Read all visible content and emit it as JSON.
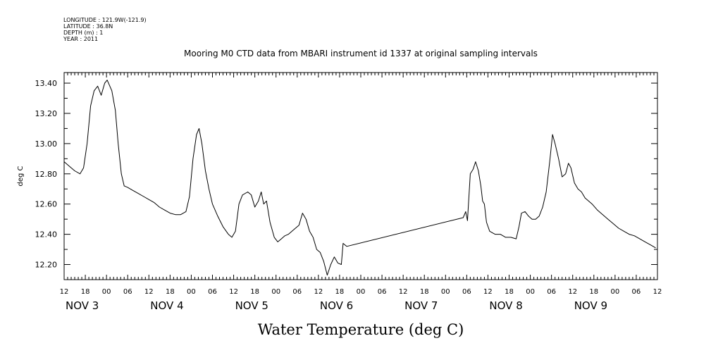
{
  "header": {
    "longitude": "LONGITUDE : 121.9W(-121.9)",
    "latitude": "LATITUDE : 36.8N",
    "depth": "DEPTH (m) : 1",
    "year": "YEAR : 2011"
  },
  "chart_data": {
    "type": "line",
    "title": "Mooring M0 CTD data from MBARI instrument id 1337 at original sampling intervals",
    "xlabel": "Water Temperature (deg C)",
    "ylabel": "deg C",
    "x_units": "hours since Nov 3 12:00 (2011)",
    "xlim": [
      0,
      168
    ],
    "ylim": [
      12.1,
      13.47
    ],
    "yticks": [
      12.2,
      12.4,
      12.6,
      12.8,
      13.0,
      13.2,
      13.4
    ],
    "ytick_labels": [
      "12.20",
      "12.40",
      "12.60",
      "12.80",
      "13.00",
      "13.20",
      "13.40"
    ],
    "xtick_hours": [
      "12",
      "18",
      "00",
      "06",
      "12",
      "18",
      "00",
      "06",
      "12",
      "18",
      "00",
      "06",
      "12",
      "18",
      "00",
      "06",
      "12",
      "18",
      "00",
      "06",
      "12",
      "18",
      "00",
      "06",
      "12",
      "18",
      "00",
      "06",
      "12"
    ],
    "day_labels": [
      {
        "label": "NOV  3",
        "hour": 0
      },
      {
        "label": "NOV  4",
        "hour": 24
      },
      {
        "label": "NOV  5",
        "hour": 48
      },
      {
        "label": "NOV  6",
        "hour": 72
      },
      {
        "label": "NOV  7",
        "hour": 96
      },
      {
        "label": "NOV  8",
        "hour": 120
      },
      {
        "label": "NOV  9",
        "hour": 144
      }
    ],
    "series": [
      {
        "points": [
          [
            0,
            12.88
          ],
          [
            1.5,
            12.85
          ],
          [
            3,
            12.82
          ],
          [
            4.5,
            12.8
          ],
          [
            5.5,
            12.84
          ],
          [
            6.5,
            13.0
          ],
          [
            7.5,
            13.25
          ],
          [
            8.5,
            13.35
          ],
          [
            9.5,
            13.38
          ],
          [
            10.5,
            13.32
          ],
          [
            11.5,
            13.4
          ],
          [
            12.2,
            13.42
          ],
          [
            13.5,
            13.35
          ],
          [
            14.5,
            13.22
          ],
          [
            15.3,
            13.0
          ],
          [
            16.2,
            12.8
          ],
          [
            17,
            12.72
          ],
          [
            18,
            12.71
          ],
          [
            19.5,
            12.69
          ],
          [
            21,
            12.67
          ],
          [
            22.5,
            12.65
          ],
          [
            24,
            12.63
          ],
          [
            25.5,
            12.61
          ],
          [
            27,
            12.58
          ],
          [
            28.5,
            12.56
          ],
          [
            30,
            12.54
          ],
          [
            31.5,
            12.53
          ],
          [
            33,
            12.53
          ],
          [
            34.5,
            12.55
          ],
          [
            35.5,
            12.65
          ],
          [
            36.5,
            12.9
          ],
          [
            37.5,
            13.06
          ],
          [
            38.2,
            13.1
          ],
          [
            39,
            13.0
          ],
          [
            40,
            12.82
          ],
          [
            41,
            12.7
          ],
          [
            42,
            12.6
          ],
          [
            43.5,
            12.52
          ],
          [
            45,
            12.45
          ],
          [
            46.5,
            12.4
          ],
          [
            47.5,
            12.38
          ],
          [
            48.5,
            12.42
          ],
          [
            49.5,
            12.6
          ],
          [
            50.5,
            12.66
          ],
          [
            52,
            12.68
          ],
          [
            53,
            12.66
          ],
          [
            54,
            12.58
          ],
          [
            55,
            12.62
          ],
          [
            55.8,
            12.68
          ],
          [
            56.5,
            12.6
          ],
          [
            57.3,
            12.62
          ],
          [
            58.3,
            12.48
          ],
          [
            59.5,
            12.38
          ],
          [
            60.5,
            12.35
          ],
          [
            61.5,
            12.37
          ],
          [
            62.5,
            12.39
          ],
          [
            63.5,
            12.4
          ],
          [
            64.5,
            12.42
          ],
          [
            65.5,
            12.44
          ],
          [
            66.5,
            12.46
          ],
          [
            67.5,
            12.54
          ],
          [
            68.5,
            12.5
          ],
          [
            69.5,
            12.42
          ],
          [
            70.5,
            12.38
          ],
          [
            71.5,
            12.3
          ],
          [
            72.5,
            12.28
          ],
          [
            73.5,
            12.22
          ],
          [
            74.5,
            12.13
          ],
          [
            75.5,
            12.2
          ],
          [
            76.5,
            12.25
          ],
          [
            77.5,
            12.21
          ],
          [
            78.5,
            12.2
          ],
          [
            79,
            12.34
          ],
          [
            80,
            12.32
          ],
          [
            113,
            12.51
          ],
          [
            113.7,
            12.55
          ],
          [
            114.2,
            12.49
          ],
          [
            115,
            12.8
          ],
          [
            115.8,
            12.83
          ],
          [
            116.5,
            12.88
          ],
          [
            117.3,
            12.82
          ],
          [
            118,
            12.72
          ],
          [
            118.5,
            12.62
          ],
          [
            119,
            12.6
          ],
          [
            119.6,
            12.48
          ],
          [
            120.5,
            12.42
          ],
          [
            122,
            12.4
          ],
          [
            123.5,
            12.4
          ],
          [
            125,
            12.38
          ],
          [
            126.5,
            12.38
          ],
          [
            128,
            12.37
          ],
          [
            128.8,
            12.45
          ],
          [
            129.5,
            12.54
          ],
          [
            130.5,
            12.55
          ],
          [
            131.5,
            12.52
          ],
          [
            132.5,
            12.5
          ],
          [
            133.5,
            12.5
          ],
          [
            134.5,
            12.52
          ],
          [
            135.5,
            12.58
          ],
          [
            136.5,
            12.68
          ],
          [
            137.5,
            12.88
          ],
          [
            138.3,
            13.06
          ],
          [
            139,
            13.0
          ],
          [
            140,
            12.9
          ],
          [
            141,
            12.78
          ],
          [
            142,
            12.8
          ],
          [
            142.8,
            12.87
          ],
          [
            143.5,
            12.84
          ],
          [
            144.5,
            12.74
          ],
          [
            145.5,
            12.7
          ],
          [
            146.5,
            12.68
          ],
          [
            147.5,
            12.64
          ],
          [
            148.5,
            12.62
          ],
          [
            149.5,
            12.6
          ],
          [
            151,
            12.56
          ],
          [
            152.5,
            12.53
          ],
          [
            154,
            12.5
          ],
          [
            155.5,
            12.47
          ],
          [
            157,
            12.44
          ],
          [
            158.5,
            12.42
          ],
          [
            160,
            12.4
          ],
          [
            161.5,
            12.39
          ],
          [
            163,
            12.37
          ],
          [
            164.5,
            12.35
          ],
          [
            166,
            12.33
          ],
          [
            167.5,
            12.31
          ]
        ]
      }
    ],
    "grid": false,
    "legend": "none"
  }
}
